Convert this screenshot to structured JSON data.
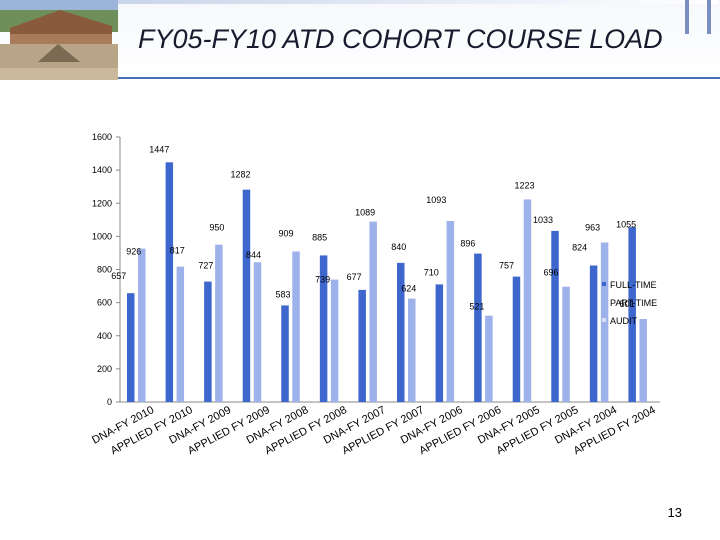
{
  "slide": {
    "title": "FY05-FY10 ATD COHORT COURSE LOAD",
    "page_number": "13"
  },
  "colors": {
    "full_time": "#3d67cc",
    "part_time": "#9db2ea",
    "audit": "#d7dff3",
    "accent": "#4a6fb5"
  },
  "chart_data": {
    "type": "bar",
    "categories": [
      "DNA-FY 2010",
      "APPLIED FY 2010",
      "DNA-FY 2009",
      "APPLIED FY 2009",
      "DNA-FY 2008",
      "APPLIED FY 2008",
      "DNA-FY 2007",
      "APPLIED FY 2007",
      "DNA-FY 2006",
      "APPLIED FY 2006",
      "DNA-FY 2005",
      "APPLIED FY 2005",
      "DNA-FY 2004",
      "APPLIED FY 2004"
    ],
    "series": [
      {
        "name": "FULL-TIME",
        "values": [
          657,
          1447,
          727,
          1282,
          583,
          885,
          677,
          840,
          710,
          896,
          757,
          1033,
          824,
          1055
        ]
      },
      {
        "name": "PART-TIME",
        "values": [
          926,
          817,
          950,
          844,
          909,
          739,
          1089,
          624,
          1093,
          521,
          1223,
          696,
          963,
          501
        ]
      },
      {
        "name": "AUDIT",
        "values": [
          null,
          null,
          null,
          null,
          null,
          null,
          null,
          null,
          null,
          null,
          null,
          null,
          null,
          null
        ]
      }
    ],
    "ylim": [
      0,
      1600
    ],
    "yticks": [
      0,
      200,
      400,
      600,
      800,
      1000,
      1200,
      1400,
      1600
    ],
    "legend_position": "right",
    "grid": false,
    "title": "",
    "xlabel": "",
    "ylabel": ""
  }
}
